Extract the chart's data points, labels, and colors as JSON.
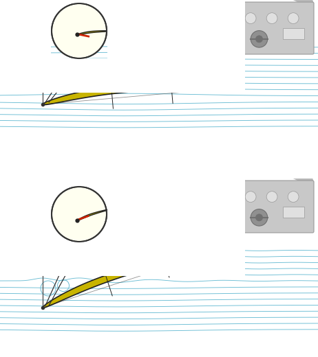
{
  "bg_color": "#ffffff",
  "airfoil_color": "#c8b400",
  "airfoil_edge": "#222222",
  "airflow_color": "#6bbdd4",
  "circle_bg": "#fffff0",
  "circle_edge": "#333333",
  "panel_color": "#c8c8c8",
  "panel_dark": "#aaaaaa",
  "panel_edge": "#999999",
  "cockpit_top": "#b8b8b8",
  "instrument_color": "#e0e0e0",
  "instrument_edge": "#999999",
  "yoke_color": "#909090",
  "yoke_dark": "#707070",
  "warning_light_off": "#dd4444",
  "warning_light_on": "#ff2222",
  "warning_glow": "#ff8800",
  "vane_color": "#cc2200",
  "callout_color": "#333333"
}
